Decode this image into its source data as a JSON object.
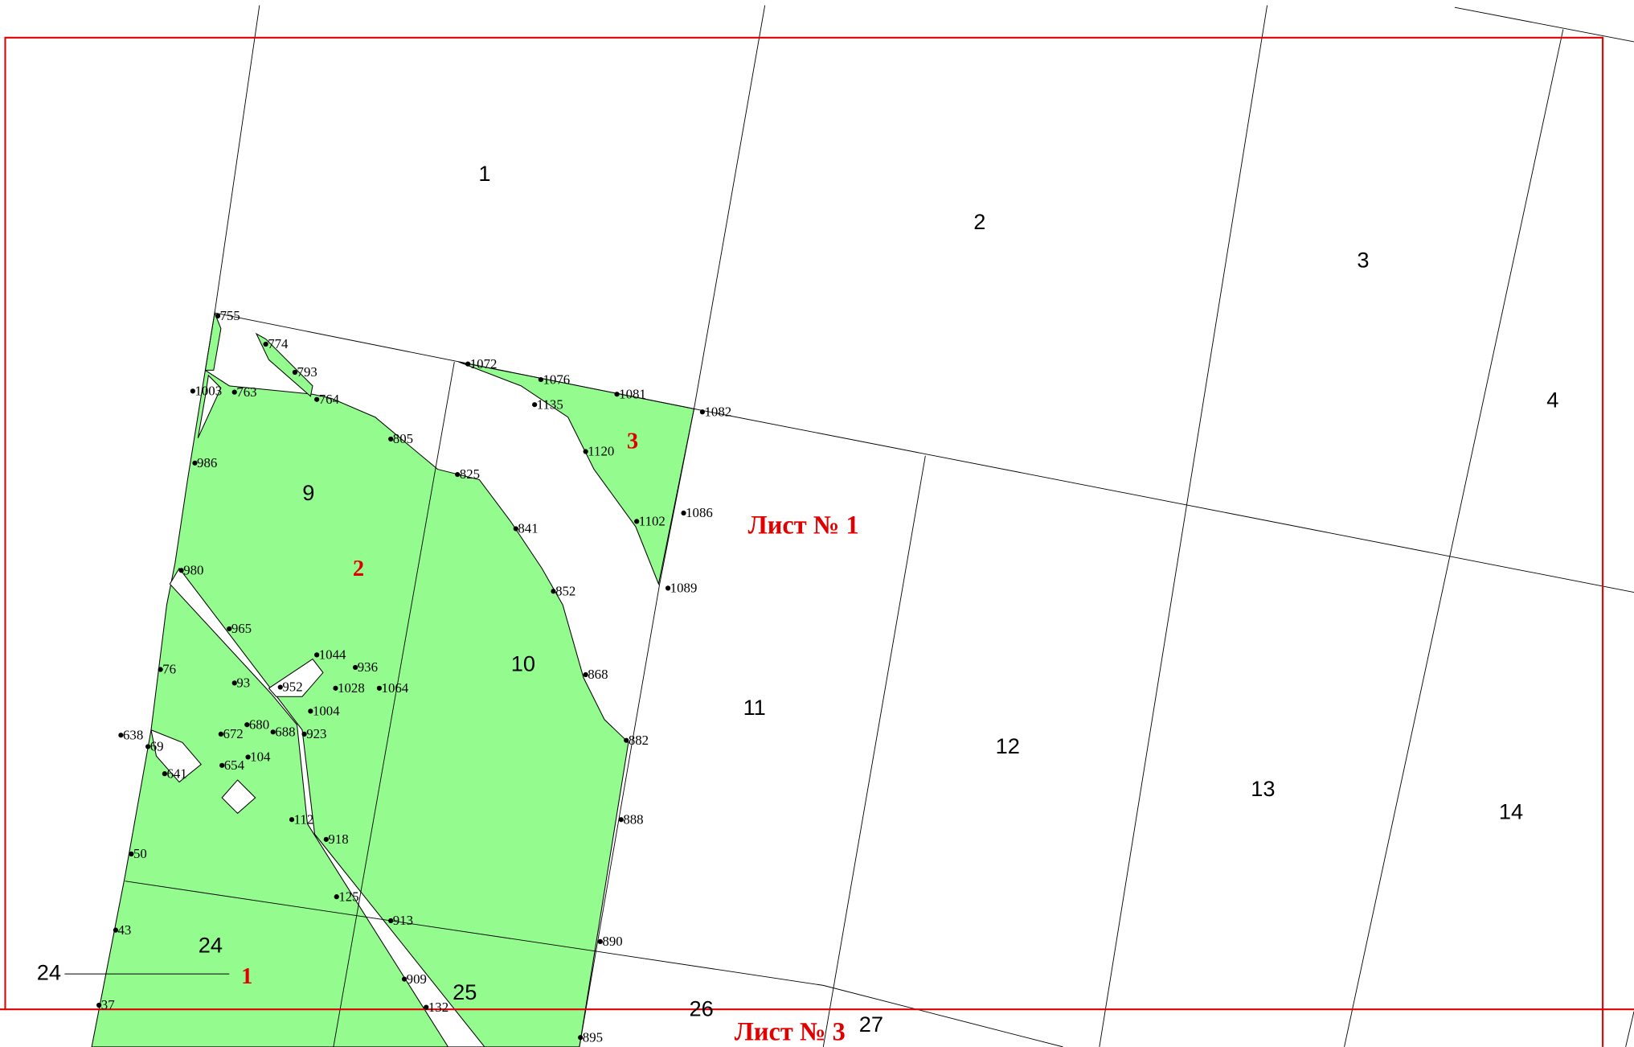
{
  "sheet_labels": [
    "Лист № 1",
    "Лист № 3"
  ],
  "plots": [
    "1",
    "2",
    "3"
  ],
  "quarters": [
    "1",
    "2",
    "3",
    "4",
    "9",
    "10",
    "11",
    "12",
    "13",
    "14",
    "24",
    "24",
    "25",
    "26",
    "27"
  ],
  "points": [
    "755",
    "774",
    "793",
    "1003",
    "763",
    "764",
    "805",
    "825",
    "986",
    "1072",
    "1076",
    "1081",
    "1082",
    "1135",
    "1120",
    "1086",
    "1102",
    "1089",
    "841",
    "852",
    "980",
    "965",
    "1044",
    "936",
    "76",
    "93",
    "952",
    "1028",
    "1064",
    "868",
    "1004",
    "638",
    "680",
    "672",
    "688",
    "923",
    "69",
    "882",
    "104",
    "654",
    "641",
    "112",
    "888",
    "918",
    "50",
    "125",
    "913",
    "43",
    "890",
    "909",
    "132",
    "37",
    "895"
  ]
}
